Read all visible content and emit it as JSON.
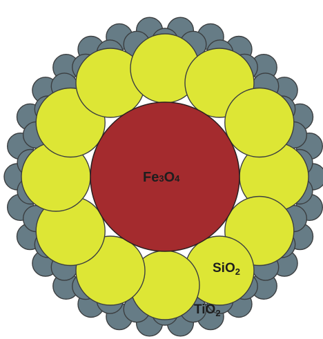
{
  "labels": {
    "core": {
      "base": "Fe",
      "sub1": "3",
      "mid": "O",
      "sub2": "4"
    },
    "middle": {
      "base": "SiO",
      "sub": "2"
    },
    "outer": {
      "base": "TiO",
      "sub": "2"
    }
  },
  "colors": {
    "core": "#a42b2e",
    "middle": "#dde635",
    "outer": "#667c86",
    "outline": "#3b3e40"
  }
}
